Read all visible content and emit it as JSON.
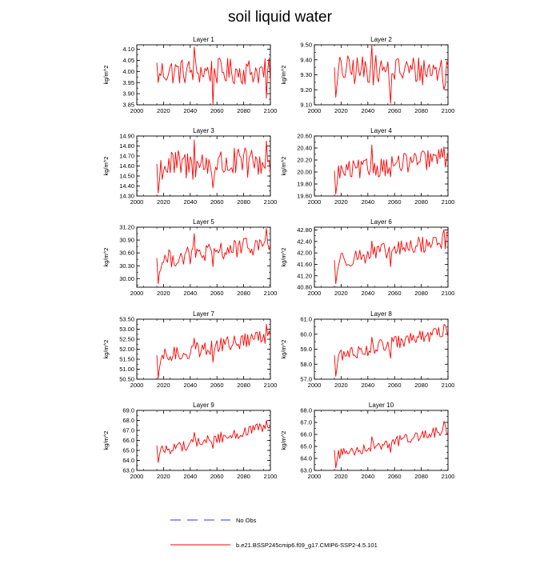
{
  "title": "soil liquid water",
  "chart_data": [
    {
      "type": "line",
      "title": "Layer 1",
      "ylabel": "kg/m^2",
      "xlim": [
        2000,
        2100
      ],
      "ylim": [
        3.85,
        4.12
      ],
      "xticks": [
        "2000",
        "2020",
        "2040",
        "2060",
        "2080",
        "2100"
      ],
      "yticks": [
        "3.85",
        "3.90",
        "3.95",
        "4.00",
        "4.05",
        "4.10"
      ],
      "trend": [
        4.0,
        4.0
      ],
      "amp": 0.06,
      "start": [
        2015,
        4.04
      ],
      "min": [
        2016,
        3.95
      ],
      "events": [
        [
          2043,
          4.11
        ],
        [
          2057,
          3.85
        ],
        [
          2097,
          3.88
        ]
      ],
      "series_name": "b.e21.BSSP245cmip6.f09_g17.CMIP6-SSP2-4.5.101"
    },
    {
      "type": "line",
      "title": "Layer 2",
      "ylabel": "kg/m^2",
      "xlim": [
        2000,
        2100
      ],
      "ylim": [
        9.1,
        9.5
      ],
      "xticks": [
        "2000",
        "2020",
        "2040",
        "2060",
        "2080",
        "2100"
      ],
      "yticks": [
        "9.10",
        "9.20",
        "9.30",
        "9.40",
        "9.50"
      ],
      "trend": [
        9.33,
        9.33
      ],
      "amp": 0.1,
      "start": [
        2015,
        9.35
      ],
      "min": [
        2016,
        9.15
      ],
      "events": [
        [
          2043,
          9.5
        ],
        [
          2057,
          9.11
        ],
        [
          2097,
          9.2
        ]
      ],
      "series_name": "b.e21.BSSP245cmip6.f09_g17.CMIP6-SSP2-4.5.101"
    },
    {
      "type": "line",
      "title": "Layer 3",
      "ylabel": "kg/m^2",
      "xlim": [
        2000,
        2100
      ],
      "ylim": [
        14.3,
        14.9
      ],
      "xticks": [
        "2000",
        "2020",
        "2040",
        "2060",
        "2080",
        "2100"
      ],
      "yticks": [
        "14.30",
        "14.40",
        "14.50",
        "14.60",
        "14.70",
        "14.80",
        "14.90"
      ],
      "trend": [
        14.6,
        14.63
      ],
      "amp": 0.16,
      "start": [
        2015,
        14.62
      ],
      "min": [
        2016,
        14.33
      ],
      "events": [
        [
          2043,
          14.86
        ],
        [
          2057,
          14.38
        ],
        [
          2097,
          14.85
        ]
      ],
      "series_name": "b.e21.BSSP245cmip6.f09_g17.CMIP6-SSP2-4.5.101"
    },
    {
      "type": "line",
      "title": "Layer 4",
      "ylabel": "kg/m^2",
      "xlim": [
        2000,
        2100
      ],
      "ylim": [
        19.6,
        20.6
      ],
      "xticks": [
        "2000",
        "2020",
        "2040",
        "2060",
        "2080",
        "2100"
      ],
      "yticks": [
        "19.60",
        "19.80",
        "20.00",
        "20.20",
        "20.40",
        "20.60"
      ],
      "trend": [
        19.98,
        20.25
      ],
      "amp": 0.17,
      "start": [
        2015,
        20.02
      ],
      "min": [
        2016,
        19.63
      ],
      "events": [
        [
          2043,
          20.45
        ],
        [
          2057,
          19.92
        ],
        [
          2097,
          20.42
        ]
      ],
      "series_name": "b.e21.BSSP245cmip6.f09_g17.CMIP6-SSP2-4.5.101"
    },
    {
      "type": "line",
      "title": "Layer 5",
      "ylabel": "kg/m^2",
      "xlim": [
        2000,
        2100
      ],
      "ylim": [
        29.8,
        31.2
      ],
      "xticks": [
        "2000",
        "2020",
        "2040",
        "2060",
        "2080",
        "2100"
      ],
      "yticks": [
        "30.00",
        "30.30",
        "30.60",
        "30.90",
        "31.20"
      ],
      "trend": [
        30.42,
        30.82
      ],
      "amp": 0.22,
      "start": [
        2015,
        30.48
      ],
      "min": [
        2016,
        29.88
      ],
      "events": [
        [
          2043,
          31.05
        ],
        [
          2057,
          30.28
        ],
        [
          2097,
          31.17
        ]
      ],
      "series_name": "b.e21.BSSP245cmip6.f09_g17.CMIP6-SSP2-4.5.101"
    },
    {
      "type": "line",
      "title": "Layer 6",
      "ylabel": "kg/m^2",
      "xlim": [
        2000,
        2100
      ],
      "ylim": [
        40.8,
        42.9
      ],
      "xticks": [
        "2000",
        "2020",
        "2040",
        "2060",
        "2080",
        "2100"
      ],
      "yticks": [
        "40.80",
        "41.20",
        "41.60",
        "42.00",
        "42.40",
        "42.80"
      ],
      "trend": [
        41.72,
        42.45
      ],
      "amp": 0.3,
      "start": [
        2015,
        41.75
      ],
      "min": [
        2016,
        40.92
      ],
      "events": [
        [
          2043,
          42.42
        ],
        [
          2057,
          41.52
        ],
        [
          2097,
          42.82
        ]
      ],
      "series_name": "b.e21.BSSP245cmip6.f09_g17.CMIP6-SSP2-4.5.101"
    },
    {
      "type": "line",
      "title": "Layer 7",
      "ylabel": "kg/m^2",
      "xlim": [
        2000,
        2100
      ],
      "ylim": [
        50.5,
        53.5
      ],
      "xticks": [
        "2000",
        "2020",
        "2040",
        "2060",
        "2080",
        "2100"
      ],
      "yticks": [
        "50.50",
        "51.00",
        "51.50",
        "52.00",
        "52.50",
        "53.00",
        "53.50"
      ],
      "trend": [
        51.55,
        52.7
      ],
      "amp": 0.4,
      "start": [
        2015,
        51.7
      ],
      "min": [
        2016,
        50.55
      ],
      "events": [
        [
          2043,
          52.55
        ],
        [
          2057,
          51.35
        ],
        [
          2097,
          53.25
        ]
      ],
      "series_name": "b.e21.BSSP245cmip6.f09_g17.CMIP6-SSP2-4.5.101"
    },
    {
      "type": "line",
      "title": "Layer 8",
      "ylabel": "kg/m^2",
      "xlim": [
        2000,
        2100
      ],
      "ylim": [
        57.0,
        61.0
      ],
      "xticks": [
        "2000",
        "2020",
        "2040",
        "2060",
        "2080",
        "2100"
      ],
      "yticks": [
        "57.0",
        "58.0",
        "59.0",
        "60.0",
        "61.0"
      ],
      "trend": [
        58.5,
        60.2
      ],
      "amp": 0.45,
      "start": [
        2015,
        58.6
      ],
      "min": [
        2016,
        57.2
      ],
      "events": [
        [
          2043,
          59.8
        ],
        [
          2057,
          58.4
        ],
        [
          2097,
          60.65
        ]
      ],
      "series_name": "b.e21.BSSP245cmip6.f09_g17.CMIP6-SSP2-4.5.101"
    },
    {
      "type": "line",
      "title": "Layer 9",
      "ylabel": "kg/m^2",
      "xlim": [
        2000,
        2100
      ],
      "ylim": [
        63.0,
        69.0
      ],
      "xticks": [
        "2000",
        "2020",
        "2040",
        "2060",
        "2080",
        "2100"
      ],
      "yticks": [
        "63.0",
        "64.0",
        "65.0",
        "66.0",
        "67.0",
        "68.0",
        "69.0"
      ],
      "trend": [
        64.9,
        67.4
      ],
      "amp": 0.55,
      "start": [
        2015,
        65.5
      ],
      "min": [
        2016,
        63.8
      ],
      "events": [
        [
          2043,
          66.8
        ],
        [
          2057,
          65.2
        ],
        [
          2097,
          68.0
        ]
      ],
      "series_name": "b.e21.BSSP245cmip6.f09_g17.CMIP6-SSP2-4.5.101"
    },
    {
      "type": "line",
      "title": "Layer 10",
      "ylabel": "kg/m^2",
      "xlim": [
        2000,
        2100
      ],
      "ylim": [
        63.0,
        68.0
      ],
      "xticks": [
        "2000",
        "2020",
        "2040",
        "2060",
        "2080",
        "2100"
      ],
      "yticks": [
        "63.0",
        "64.0",
        "65.0",
        "66.0",
        "67.0",
        "68.0"
      ],
      "trend": [
        64.3,
        66.4
      ],
      "amp": 0.45,
      "start": [
        2015,
        64.7
      ],
      "min": [
        2016,
        63.2
      ],
      "events": [
        [
          2043,
          65.8
        ],
        [
          2057,
          64.5
        ],
        [
          2097,
          67.1
        ]
      ],
      "series_name": "b.e21.BSSP245cmip6.f09_g17.CMIP6-SSP2-4.5.101"
    }
  ],
  "legend": {
    "obs_label": "No Obs",
    "series_label": "b.e21.BSSP245cmip6.f09_g17.CMIP6-SSP2-4.5.101",
    "line_color": "#ff0000",
    "obs_color": "#1a1aff"
  }
}
